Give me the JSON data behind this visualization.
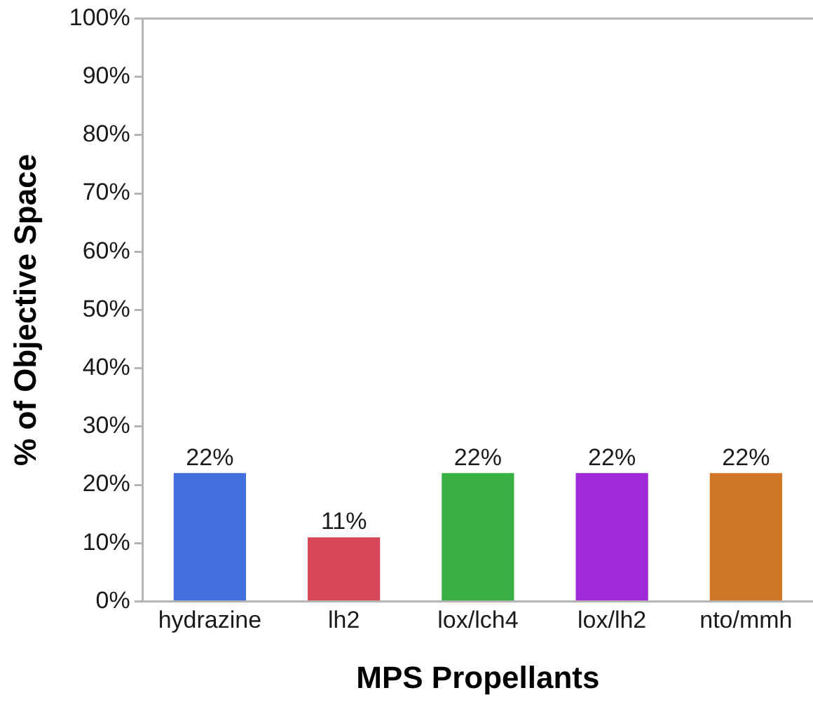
{
  "chart_data": {
    "type": "bar",
    "categories": [
      "hydrazine",
      "lh2",
      "lox/lch4",
      "lox/lh2",
      "nto/mmh"
    ],
    "values": [
      22,
      11,
      22,
      22,
      22
    ],
    "colors": [
      "#4170de",
      "#d64759",
      "#38b043",
      "#a12ad8",
      "#cf7726"
    ],
    "value_labels": [
      "22%",
      "11%",
      "22%",
      "22%",
      "22%"
    ],
    "xlabel": "MPS Propellants",
    "ylabel": "% of Objective Space",
    "ylim": [
      0,
      100
    ],
    "yticks": [
      {
        "value": 0,
        "label": "0%"
      },
      {
        "value": 10,
        "label": "10%"
      },
      {
        "value": 20,
        "label": "20%"
      },
      {
        "value": 30,
        "label": "30%"
      },
      {
        "value": 40,
        "label": "40%"
      },
      {
        "value": 50,
        "label": "50%"
      },
      {
        "value": 60,
        "label": "60%"
      },
      {
        "value": 70,
        "label": "70%"
      },
      {
        "value": 80,
        "label": "80%"
      },
      {
        "value": 90,
        "label": "90%"
      },
      {
        "value": 100,
        "label": "100%"
      }
    ],
    "grid": false,
    "legend": false
  }
}
